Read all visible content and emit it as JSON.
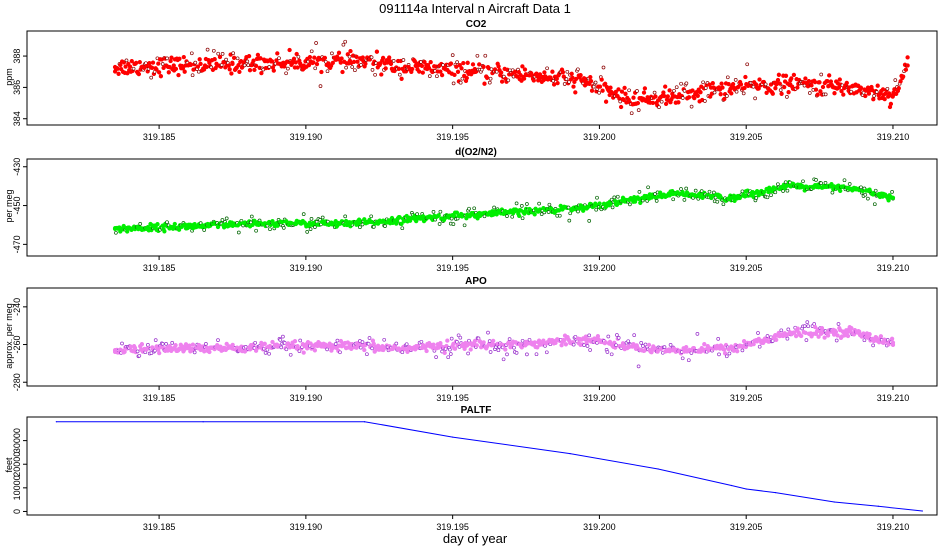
{
  "title": "091114a   Interval n Aircraft Data 1",
  "xlabel": "day of year",
  "colors": {
    "co2": "#ff0000",
    "o2n2": "#00ee00",
    "apo": "#ee82ee",
    "paltf": "#0000ff",
    "dot_outline_co2": "#8b0000",
    "dot_outline_o2n2": "#006400",
    "dot_outline_apo": "#9932cc"
  },
  "chart_data": [
    {
      "type": "scatter",
      "title": "CO2",
      "ylabel": "ppm",
      "xlim": [
        319.1805,
        319.2115
      ],
      "ylim": [
        383.6,
        389.6
      ],
      "x_ticks": [
        "319.185",
        "319.190",
        "319.195",
        "319.200",
        "319.205",
        "319.210"
      ],
      "y_ticks": [
        "384",
        "386",
        "388"
      ],
      "series": [
        {
          "x": [
            319.1835,
            319.1855,
            319.1875,
            319.1895,
            319.1915,
            319.1935,
            319.1955,
            319.1975,
            319.1995,
            319.201,
            319.2025,
            319.2045,
            319.2065,
            319.2085,
            319.21,
            319.2105
          ],
          "y": [
            387.3,
            387.4,
            387.5,
            387.6,
            387.7,
            387.3,
            387.0,
            386.8,
            386.4,
            385.2,
            385.4,
            386.0,
            386.2,
            386.0,
            385.5,
            387.4
          ]
        }
      ]
    },
    {
      "type": "scatter",
      "title": "d(O2/N2)",
      "ylabel": "per meg",
      "xlim": [
        319.1805,
        319.2115
      ],
      "ylim": [
        -476,
        -426
      ],
      "x_ticks": [
        "319.185",
        "319.190",
        "319.195",
        "319.200",
        "319.205",
        "319.210"
      ],
      "y_ticks": [
        "-470",
        "-450",
        "-430"
      ],
      "series": [
        {
          "x": [
            319.1835,
            319.1855,
            319.1875,
            319.1895,
            319.1915,
            319.1935,
            319.1955,
            319.1975,
            319.1995,
            319.201,
            319.2025,
            319.2045,
            319.2065,
            319.2085,
            319.21
          ],
          "y": [
            -462.0,
            -461.0,
            -460.0,
            -459.0,
            -459.5,
            -457.0,
            -455.0,
            -453.0,
            -451.0,
            -447.0,
            -444.0,
            -446.0,
            -440.0,
            -441.0,
            -446.0
          ]
        }
      ]
    },
    {
      "type": "scatter",
      "title": "APO",
      "ylabel": "approx. per meg",
      "xlim": [
        319.1805,
        319.2115
      ],
      "ylim": [
        -282,
        -230
      ],
      "x_ticks": [
        "319.185",
        "319.190",
        "319.195",
        "319.200",
        "319.205",
        "319.210"
      ],
      "y_ticks": [
        "-280",
        "-260",
        "-240"
      ],
      "series": [
        {
          "x": [
            319.1835,
            319.1855,
            319.1875,
            319.1895,
            319.1915,
            319.1935,
            319.1955,
            319.1975,
            319.1995,
            319.201,
            319.2025,
            319.2045,
            319.2065,
            319.2085,
            319.21
          ],
          "y": [
            -263.0,
            -262.0,
            -262.0,
            -261.0,
            -261.0,
            -262.0,
            -260.0,
            -260.0,
            -257.0,
            -261.0,
            -263.0,
            -262.0,
            -254.0,
            -253.0,
            -259.0
          ]
        }
      ]
    },
    {
      "type": "line",
      "title": "PALTF",
      "ylabel": "feet",
      "xlim": [
        319.1805,
        319.2115
      ],
      "ylim": [
        -1500,
        40000
      ],
      "x_ticks": [
        "319.185",
        "319.190",
        "319.195",
        "319.200",
        "319.205",
        "319.210"
      ],
      "y_ticks": [
        "0",
        "10000",
        "20000",
        "30000"
      ],
      "series": [
        {
          "x": [
            319.1815,
            319.1865,
            319.192,
            319.195,
            319.199,
            319.202,
            319.2045,
            319.205,
            319.206,
            319.208,
            319.2095,
            319.211
          ],
          "y": [
            38000,
            38000,
            38000,
            31500,
            24500,
            18000,
            11000,
            9500,
            8000,
            4000,
            2200,
            200
          ]
        }
      ]
    }
  ]
}
